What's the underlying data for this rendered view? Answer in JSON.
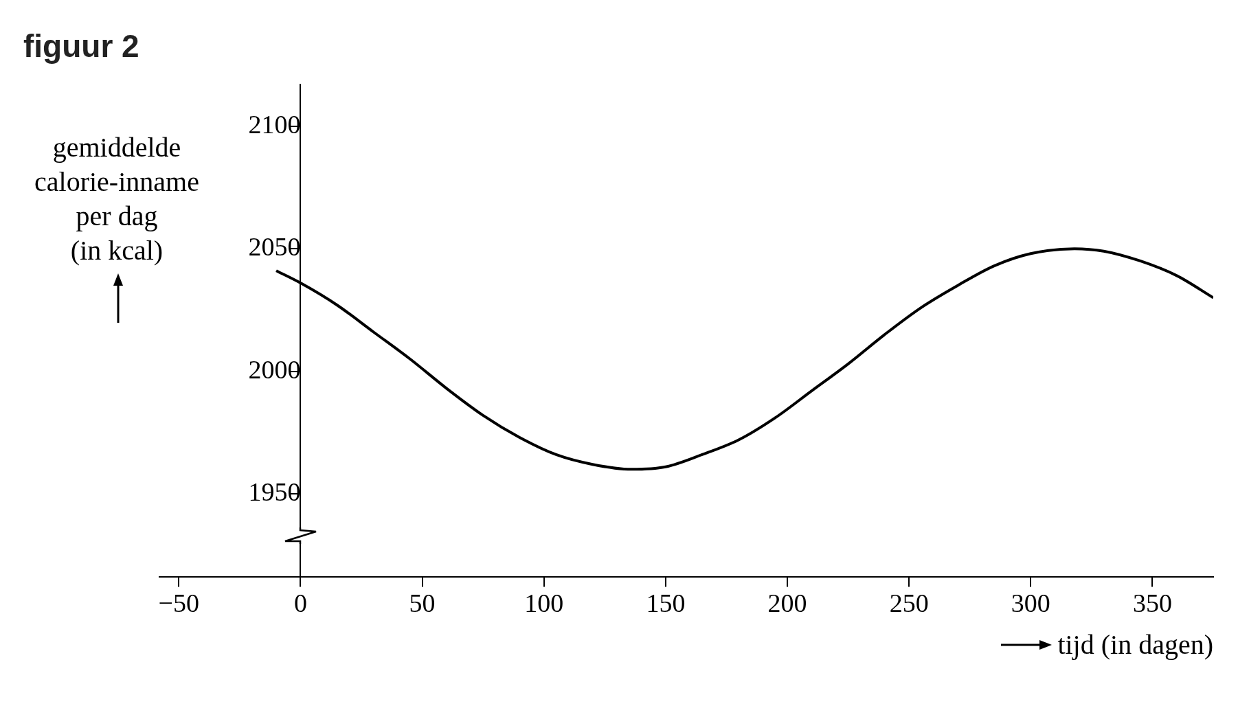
{
  "chart_data": {
    "type": "line",
    "title": "figuur 2",
    "xlabel": "tijd (in dagen)",
    "ylabel": "gemiddelde\ncalorie-inname\nper dag\n(in kcal)",
    "xlim": [
      -58,
      375
    ],
    "xticks": [
      -50,
      0,
      50,
      100,
      150,
      200,
      250,
      300,
      350
    ],
    "ylim": [
      1916,
      2117
    ],
    "yticks": [
      1950,
      2000,
      2050,
      2100
    ],
    "legend": false,
    "series": [
      {
        "color": "#000000",
        "x": [
          -10,
          0,
          15,
          30,
          45,
          60,
          75,
          90,
          105,
          120,
          136,
          150,
          165,
          180,
          195,
          210,
          225,
          240,
          255,
          270,
          285,
          300,
          318,
          330,
          345,
          360,
          375
        ],
        "values": [
          2041,
          2036,
          2027,
          2016,
          2005,
          1993,
          1982,
          1973,
          1966,
          1962,
          1960,
          1961,
          1966,
          1972,
          1981,
          1992,
          2003,
          2015,
          2026,
          2035,
          2043,
          2048,
          2050,
          2049,
          2045,
          2039,
          2030
        ]
      }
    ]
  }
}
